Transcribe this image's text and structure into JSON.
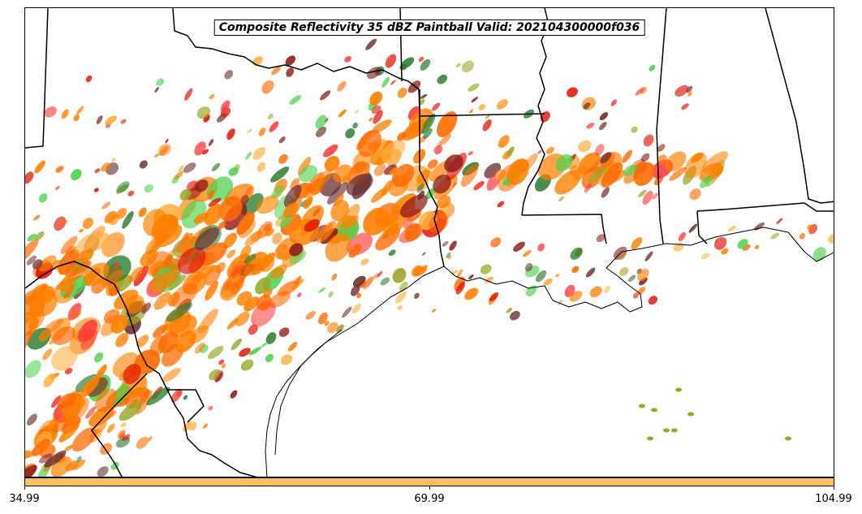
{
  "title": "Composite Reflectivity 35 dBZ Paintball Valid: 202104300000f036",
  "colors": {
    "colorbar": "#fdc15e",
    "paint": [
      "#ff8000",
      "#ff8000",
      "#ff6a00",
      "#e01000",
      "#ff3a3a",
      "#8b1a1a",
      "#2e7d32",
      "#4dd24d",
      "#9aa628",
      "#ffb040",
      "#6b3030"
    ],
    "border": "#000000"
  },
  "colorbar": {
    "ticks": [
      "34.99",
      "69.99",
      "104.99"
    ]
  }
}
